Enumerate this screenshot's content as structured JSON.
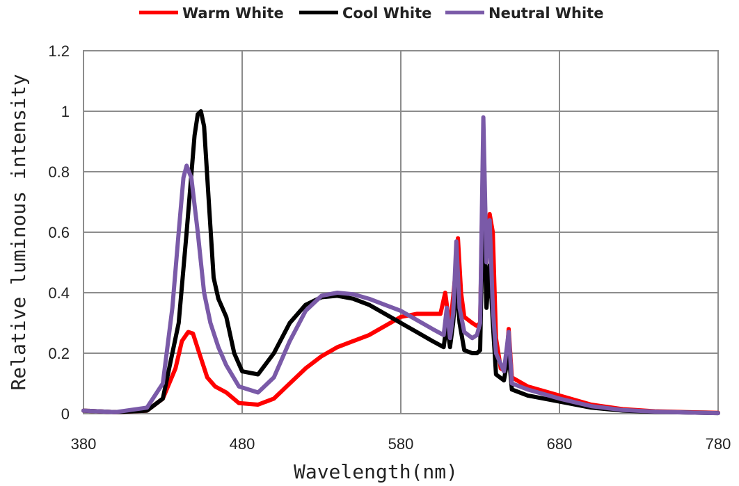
{
  "chart_data": {
    "type": "line",
    "xlabel": "Wavelength(nm)",
    "ylabel": "Relative luminous intensity",
    "xlim": [
      380,
      780
    ],
    "ylim": [
      0,
      1.2
    ],
    "x_ticks": [
      "380",
      "480",
      "580",
      "680",
      "780"
    ],
    "y_ticks": [
      "0",
      "0.2",
      "0.4",
      "0.6",
      "0.8",
      "1",
      "1.2"
    ],
    "grid": true,
    "legend_position": "top",
    "series": [
      {
        "name": "Warm White",
        "color": "#ff0000",
        "points": [
          [
            380,
            0.01
          ],
          [
            400,
            0.005
          ],
          [
            420,
            0.01
          ],
          [
            430,
            0.05
          ],
          [
            438,
            0.15
          ],
          [
            442,
            0.24
          ],
          [
            446,
            0.27
          ],
          [
            449,
            0.265
          ],
          [
            453,
            0.2
          ],
          [
            458,
            0.12
          ],
          [
            463,
            0.09
          ],
          [
            470,
            0.07
          ],
          [
            478,
            0.035
          ],
          [
            490,
            0.03
          ],
          [
            500,
            0.05
          ],
          [
            510,
            0.1
          ],
          [
            520,
            0.15
          ],
          [
            530,
            0.19
          ],
          [
            540,
            0.22
          ],
          [
            550,
            0.24
          ],
          [
            560,
            0.26
          ],
          [
            570,
            0.29
          ],
          [
            580,
            0.32
          ],
          [
            590,
            0.33
          ],
          [
            600,
            0.33
          ],
          [
            605,
            0.33
          ],
          [
            608,
            0.4
          ],
          [
            611,
            0.28
          ],
          [
            614,
            0.44
          ],
          [
            616,
            0.58
          ],
          [
            618,
            0.4
          ],
          [
            620,
            0.32
          ],
          [
            625,
            0.3
          ],
          [
            628,
            0.29
          ],
          [
            630,
            0.3
          ],
          [
            632,
            0.9
          ],
          [
            634,
            0.5
          ],
          [
            636,
            0.66
          ],
          [
            638,
            0.6
          ],
          [
            640,
            0.25
          ],
          [
            643,
            0.15
          ],
          [
            646,
            0.14
          ],
          [
            648,
            0.28
          ],
          [
            650,
            0.12
          ],
          [
            660,
            0.09
          ],
          [
            680,
            0.06
          ],
          [
            700,
            0.03
          ],
          [
            720,
            0.015
          ],
          [
            740,
            0.008
          ],
          [
            760,
            0.005
          ],
          [
            780,
            0.003
          ]
        ]
      },
      {
        "name": "Cool White",
        "color": "#000000",
        "points": [
          [
            380,
            0.01
          ],
          [
            400,
            0.005
          ],
          [
            420,
            0.01
          ],
          [
            430,
            0.05
          ],
          [
            440,
            0.3
          ],
          [
            445,
            0.6
          ],
          [
            450,
            0.92
          ],
          [
            452,
            0.99
          ],
          [
            454,
            1.0
          ],
          [
            456,
            0.95
          ],
          [
            459,
            0.7
          ],
          [
            462,
            0.45
          ],
          [
            465,
            0.38
          ],
          [
            470,
            0.32
          ],
          [
            475,
            0.2
          ],
          [
            480,
            0.14
          ],
          [
            490,
            0.13
          ],
          [
            500,
            0.2
          ],
          [
            510,
            0.3
          ],
          [
            520,
            0.36
          ],
          [
            530,
            0.385
          ],
          [
            540,
            0.39
          ],
          [
            550,
            0.38
          ],
          [
            560,
            0.36
          ],
          [
            570,
            0.33
          ],
          [
            580,
            0.3
          ],
          [
            590,
            0.27
          ],
          [
            600,
            0.24
          ],
          [
            607,
            0.22
          ],
          [
            609,
            0.3
          ],
          [
            611,
            0.22
          ],
          [
            613,
            0.3
          ],
          [
            615,
            0.43
          ],
          [
            617,
            0.3
          ],
          [
            620,
            0.21
          ],
          [
            625,
            0.2
          ],
          [
            628,
            0.2
          ],
          [
            630,
            0.21
          ],
          [
            632,
            0.74
          ],
          [
            634,
            0.35
          ],
          [
            636,
            0.49
          ],
          [
            638,
            0.3
          ],
          [
            640,
            0.13
          ],
          [
            645,
            0.11
          ],
          [
            648,
            0.2
          ],
          [
            650,
            0.08
          ],
          [
            660,
            0.06
          ],
          [
            680,
            0.04
          ],
          [
            700,
            0.02
          ],
          [
            720,
            0.01
          ],
          [
            740,
            0.006
          ],
          [
            760,
            0.004
          ],
          [
            780,
            0.002
          ]
        ]
      },
      {
        "name": "Neutral White",
        "color": "#7a5aa8",
        "points": [
          [
            380,
            0.01
          ],
          [
            400,
            0.005
          ],
          [
            420,
            0.02
          ],
          [
            430,
            0.1
          ],
          [
            436,
            0.35
          ],
          [
            440,
            0.6
          ],
          [
            443,
            0.78
          ],
          [
            445,
            0.82
          ],
          [
            448,
            0.78
          ],
          [
            452,
            0.6
          ],
          [
            456,
            0.4
          ],
          [
            460,
            0.3
          ],
          [
            465,
            0.22
          ],
          [
            470,
            0.16
          ],
          [
            478,
            0.09
          ],
          [
            490,
            0.07
          ],
          [
            500,
            0.12
          ],
          [
            510,
            0.24
          ],
          [
            520,
            0.34
          ],
          [
            530,
            0.39
          ],
          [
            540,
            0.4
          ],
          [
            550,
            0.395
          ],
          [
            560,
            0.38
          ],
          [
            570,
            0.36
          ],
          [
            580,
            0.34
          ],
          [
            590,
            0.31
          ],
          [
            600,
            0.28
          ],
          [
            607,
            0.26
          ],
          [
            609,
            0.35
          ],
          [
            611,
            0.25
          ],
          [
            613,
            0.33
          ],
          [
            615,
            0.57
          ],
          [
            617,
            0.35
          ],
          [
            620,
            0.27
          ],
          [
            625,
            0.25
          ],
          [
            628,
            0.26
          ],
          [
            630,
            0.3
          ],
          [
            632,
            0.98
          ],
          [
            634,
            0.5
          ],
          [
            636,
            0.64
          ],
          [
            638,
            0.35
          ],
          [
            640,
            0.2
          ],
          [
            645,
            0.14
          ],
          [
            648,
            0.27
          ],
          [
            650,
            0.1
          ],
          [
            660,
            0.08
          ],
          [
            680,
            0.05
          ],
          [
            700,
            0.025
          ],
          [
            720,
            0.012
          ],
          [
            740,
            0.007
          ],
          [
            760,
            0.004
          ],
          [
            780,
            0.002
          ]
        ]
      }
    ]
  }
}
